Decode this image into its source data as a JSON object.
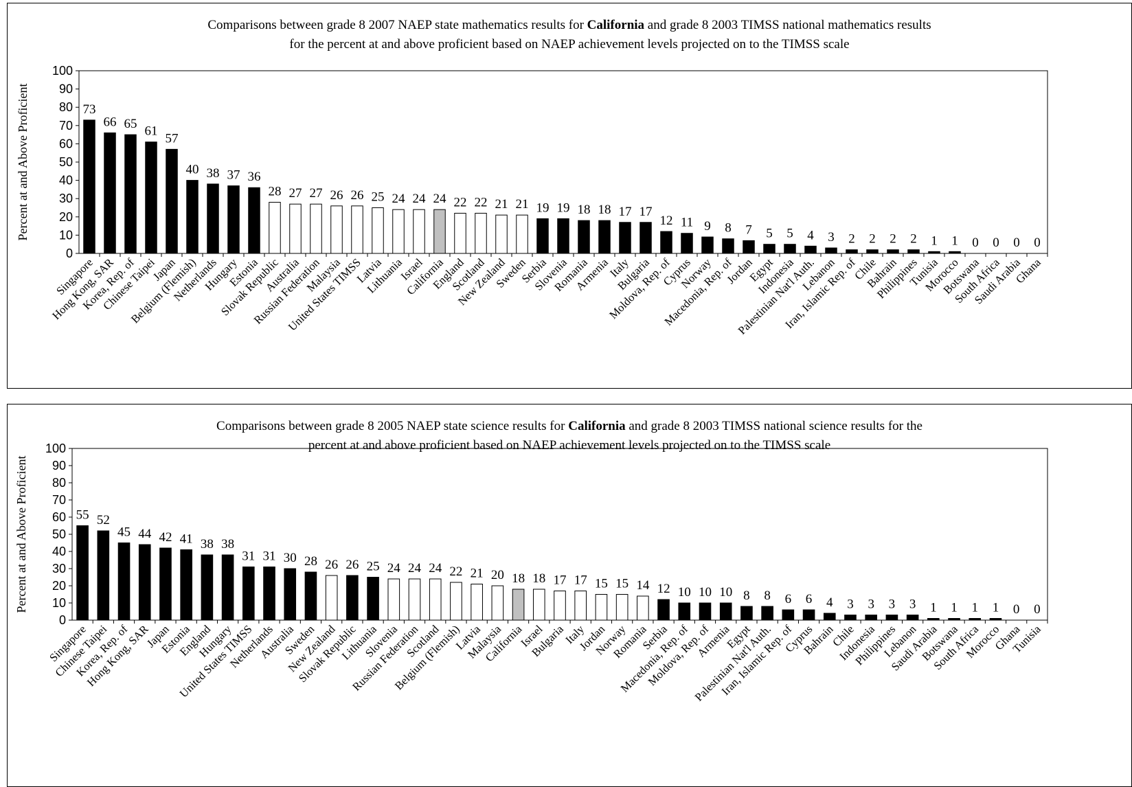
{
  "chart_data": [
    {
      "type": "bar",
      "title_parts": {
        "pre": "Comparisons between grade 8 2007 NAEP state mathematics results for ",
        "bold": "California",
        "post": " and grade 8 2003 TIMSS national mathematics results",
        "line2": "for the percent at and above proficient based on NAEP achievement levels projected on to the TIMSS scale"
      },
      "ylabel": "Percent at and Above Proficient",
      "ylim": [
        0,
        100
      ],
      "yticks": [
        0,
        10,
        20,
        30,
        40,
        50,
        60,
        70,
        80,
        90,
        100
      ],
      "grid": false,
      "legend": "none",
      "colors": {
        "black": "#000000",
        "white": "#ffffff",
        "gray": "#c0c0c0"
      },
      "categories": [
        "Singapore",
        "Hong Kong, SAR",
        "Korea, Rep. of",
        "Chinese Taipei",
        "Japan",
        "Belgium (Flemish)",
        "Netherlands",
        "Hungary",
        "Estonia",
        "Slovak Republic",
        "Australia",
        "Russian Federation",
        "Malaysia",
        "United States TIMSS",
        "Latvia",
        "Lithuania",
        "Israel",
        "California",
        "England",
        "Scotland",
        "New Zealand",
        "Sweden",
        "Serbia",
        "Slovenia",
        "Romania",
        "Armenia",
        "Italy",
        "Bulgaria",
        "Moldova, Rep. of",
        "Cyprus",
        "Norway",
        "Macedonia, Rep. of",
        "Jordan",
        "Egypt",
        "Indonesia",
        "Palestinian Nat'l Auth.",
        "Lebanon",
        "Iran, Islamic Rep. of",
        "Chile",
        "Bahrain",
        "Philippines",
        "Tunisia",
        "Morocco",
        "Botswana",
        "South Africa",
        "Saudi Arabia",
        "Ghana"
      ],
      "values": [
        73,
        66,
        65,
        61,
        57,
        40,
        38,
        37,
        36,
        28,
        27,
        27,
        26,
        26,
        25,
        24,
        24,
        24,
        22,
        22,
        21,
        21,
        19,
        19,
        18,
        18,
        17,
        17,
        12,
        11,
        9,
        8,
        7,
        5,
        5,
        4,
        3,
        2,
        2,
        2,
        2,
        1,
        1,
        0,
        0,
        0,
        0
      ],
      "value_labels": [
        "73",
        "66",
        "65",
        "61",
        "57",
        "40",
        "38",
        "37",
        "36",
        "28",
        "27",
        "27",
        "26",
        "26",
        "25",
        "24",
        "24",
        "24",
        "22",
        "22",
        "21",
        "21",
        "19",
        "19",
        "18",
        "18",
        "17",
        "17",
        "12",
        "11",
        "9",
        "8",
        "7",
        "5",
        "5",
        "4",
        "3",
        "2",
        "2",
        "2",
        "2",
        "1",
        "1",
        "0",
        "0",
        "0",
        "0"
      ],
      "fills": [
        "black",
        "black",
        "black",
        "black",
        "black",
        "black",
        "black",
        "black",
        "black",
        "white",
        "white",
        "white",
        "white",
        "white",
        "white",
        "white",
        "white",
        "gray",
        "white",
        "white",
        "white",
        "white",
        "black",
        "black",
        "black",
        "black",
        "black",
        "black",
        "black",
        "black",
        "black",
        "black",
        "black",
        "black",
        "black",
        "black",
        "black",
        "black",
        "black",
        "black",
        "black",
        "black",
        "black",
        "black",
        "black",
        "black",
        "black"
      ]
    },
    {
      "type": "bar",
      "title_parts": {
        "pre": "Comparisons between grade 8 2005 NAEP state science results for ",
        "bold": "California",
        "post": " and grade 8 2003 TIMSS national science results for the",
        "line2": "percent at and above proficient based on NAEP achievement levels projected on to the TIMSS scale"
      },
      "ylabel": "Percent at and Above Proficient",
      "ylim": [
        0,
        100
      ],
      "yticks": [
        0,
        10,
        20,
        30,
        40,
        50,
        60,
        70,
        80,
        90,
        100
      ],
      "grid": false,
      "legend": "none",
      "colors": {
        "black": "#000000",
        "white": "#ffffff",
        "gray": "#c0c0c0"
      },
      "categories": [
        "Singapore",
        "Chinese Taipei",
        "Korea, Rep. of",
        "Hong Kong, SAR",
        "Japan",
        "Estonia",
        "England",
        "Hungary",
        "United States TIMSS",
        "Netherlands",
        "Australia",
        "Sweden",
        "New Zealand",
        "Slovak Republic",
        "Lithuania",
        "Slovenia",
        "Russian Federation",
        "Scotland",
        "Belgium (Flemish)",
        "Latvia",
        "Malaysia",
        "California",
        "Israel",
        "Bulgaria",
        "Italy",
        "Jordan",
        "Norway",
        "Romania",
        "Serbia",
        "Macedonia, Rep. of",
        "Moldova, Rep. of",
        "Armenia",
        "Egypt",
        "Palestinian Nat'l Auth.",
        "Iran, Islamic Rep. of",
        "Cyprus",
        "Bahrain",
        "Chile",
        "Indonesia",
        "Philippines",
        "Lebanon",
        "Saudi Arabia",
        "Botswana",
        "South Africa",
        "Morocco",
        "Ghana",
        "Tunisia"
      ],
      "values": [
        55,
        52,
        45,
        44,
        42,
        41,
        38,
        38,
        31,
        31,
        30,
        28,
        26,
        26,
        25,
        24,
        24,
        24,
        22,
        21,
        20,
        18,
        18,
        17,
        17,
        15,
        15,
        14,
        12,
        10,
        10,
        10,
        8,
        8,
        6,
        6,
        4,
        3,
        3,
        3,
        3,
        1,
        1,
        1,
        1,
        0,
        0
      ],
      "value_labels": [
        "55",
        "52",
        "45",
        "44",
        "42",
        "41",
        "38",
        "38",
        "31",
        "31",
        "30",
        "28",
        "26",
        "26",
        "25",
        "24",
        "24",
        "24",
        "22",
        "21",
        "20",
        "18",
        "18",
        "17",
        "17",
        "15",
        "15",
        "14",
        "12",
        "10",
        "10",
        "10",
        "8",
        "8",
        "6",
        "6",
        "4",
        "3",
        "3",
        "3",
        "3",
        "1",
        "1",
        "1",
        "1",
        "0",
        "0"
      ],
      "fills": [
        "black",
        "black",
        "black",
        "black",
        "black",
        "black",
        "black",
        "black",
        "black",
        "black",
        "black",
        "black",
        "white",
        "black",
        "black",
        "white",
        "white",
        "white",
        "white",
        "white",
        "white",
        "gray",
        "white",
        "white",
        "white",
        "white",
        "white",
        "white",
        "black",
        "black",
        "black",
        "black",
        "black",
        "black",
        "black",
        "black",
        "black",
        "black",
        "black",
        "black",
        "black",
        "black",
        "black",
        "black",
        "black",
        "black",
        "black"
      ]
    }
  ]
}
